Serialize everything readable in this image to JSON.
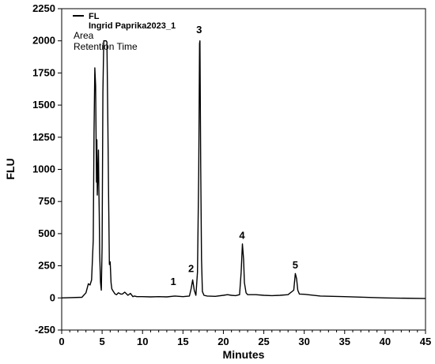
{
  "chart_data": {
    "type": "line",
    "xlabel": "Minutes",
    "ylabel": "FLU",
    "xlim": [
      0,
      45
    ],
    "ylim": [
      -250,
      2250
    ],
    "x_ticks": [
      0,
      5,
      10,
      15,
      20,
      25,
      30,
      35,
      40,
      45
    ],
    "y_ticks": [
      -250,
      0,
      250,
      500,
      750,
      1000,
      1250,
      1500,
      1750,
      2000,
      2250
    ],
    "grid": false,
    "legend": {
      "placement": "top-left",
      "series_name": "FL",
      "sample": "Ingrid Paprika2023_1",
      "lines": [
        "Area",
        "Retention Time"
      ]
    },
    "series": [
      {
        "name": "FL",
        "x": [
          0,
          2.5,
          3.0,
          3.3,
          3.5,
          3.7,
          3.9,
          4.0,
          4.1,
          4.2,
          4.3,
          4.35,
          4.4,
          4.5,
          4.55,
          4.6,
          4.65,
          4.7,
          4.8,
          4.9,
          5.0,
          5.1,
          5.2,
          5.25,
          5.3,
          5.4,
          5.5,
          5.6,
          5.7,
          5.8,
          5.9,
          6.0,
          6.1,
          6.2,
          6.4,
          6.6,
          6.8,
          7.0,
          7.3,
          7.5,
          7.8,
          8.2,
          8.5,
          8.8,
          9.0,
          9.3,
          10.0,
          11.0,
          12.0,
          13.0,
          14.0,
          14.5,
          15.0,
          15.8,
          16.0,
          16.2,
          16.4,
          16.6,
          16.8,
          16.95,
          17.05,
          17.1,
          17.2,
          17.3,
          17.4,
          17.6,
          18.0,
          19.0,
          20.0,
          20.5,
          21.0,
          21.5,
          22.0,
          22.2,
          22.35,
          22.5,
          22.6,
          22.8,
          23.0,
          24.0,
          25.0,
          26.0,
          27.0,
          28.0,
          28.7,
          28.9,
          29.05,
          29.2,
          29.4,
          30.0,
          32.0,
          35.0,
          40.0,
          45.0
        ],
        "values": [
          0,
          5,
          40,
          110,
          100,
          140,
          450,
          1300,
          1790,
          1650,
          900,
          1230,
          800,
          1000,
          1150,
          850,
          650,
          350,
          120,
          60,
          400,
          1600,
          2000,
          2000,
          2000,
          2000,
          2000,
          1990,
          1400,
          800,
          260,
          280,
          120,
          70,
          50,
          30,
          25,
          40,
          30,
          30,
          45,
          20,
          35,
          10,
          15,
          10,
          10,
          8,
          10,
          8,
          15,
          12,
          10,
          15,
          70,
          140,
          60,
          20,
          200,
          1000,
          1980,
          2000,
          1000,
          300,
          50,
          20,
          15,
          12,
          20,
          25,
          20,
          18,
          25,
          200,
          420,
          300,
          120,
          40,
          25,
          25,
          20,
          18,
          20,
          25,
          60,
          190,
          150,
          60,
          30,
          28,
          15,
          10,
          0,
          -5
        ]
      }
    ],
    "annotations": [
      {
        "label": "1",
        "x": 13.8,
        "y": 100
      },
      {
        "label": "2",
        "x": 16.0,
        "y": 200
      },
      {
        "label": "3",
        "x": 17.0,
        "y": 2060
      },
      {
        "label": "4",
        "x": 22.3,
        "y": 460
      },
      {
        "label": "5",
        "x": 28.9,
        "y": 230
      }
    ]
  }
}
